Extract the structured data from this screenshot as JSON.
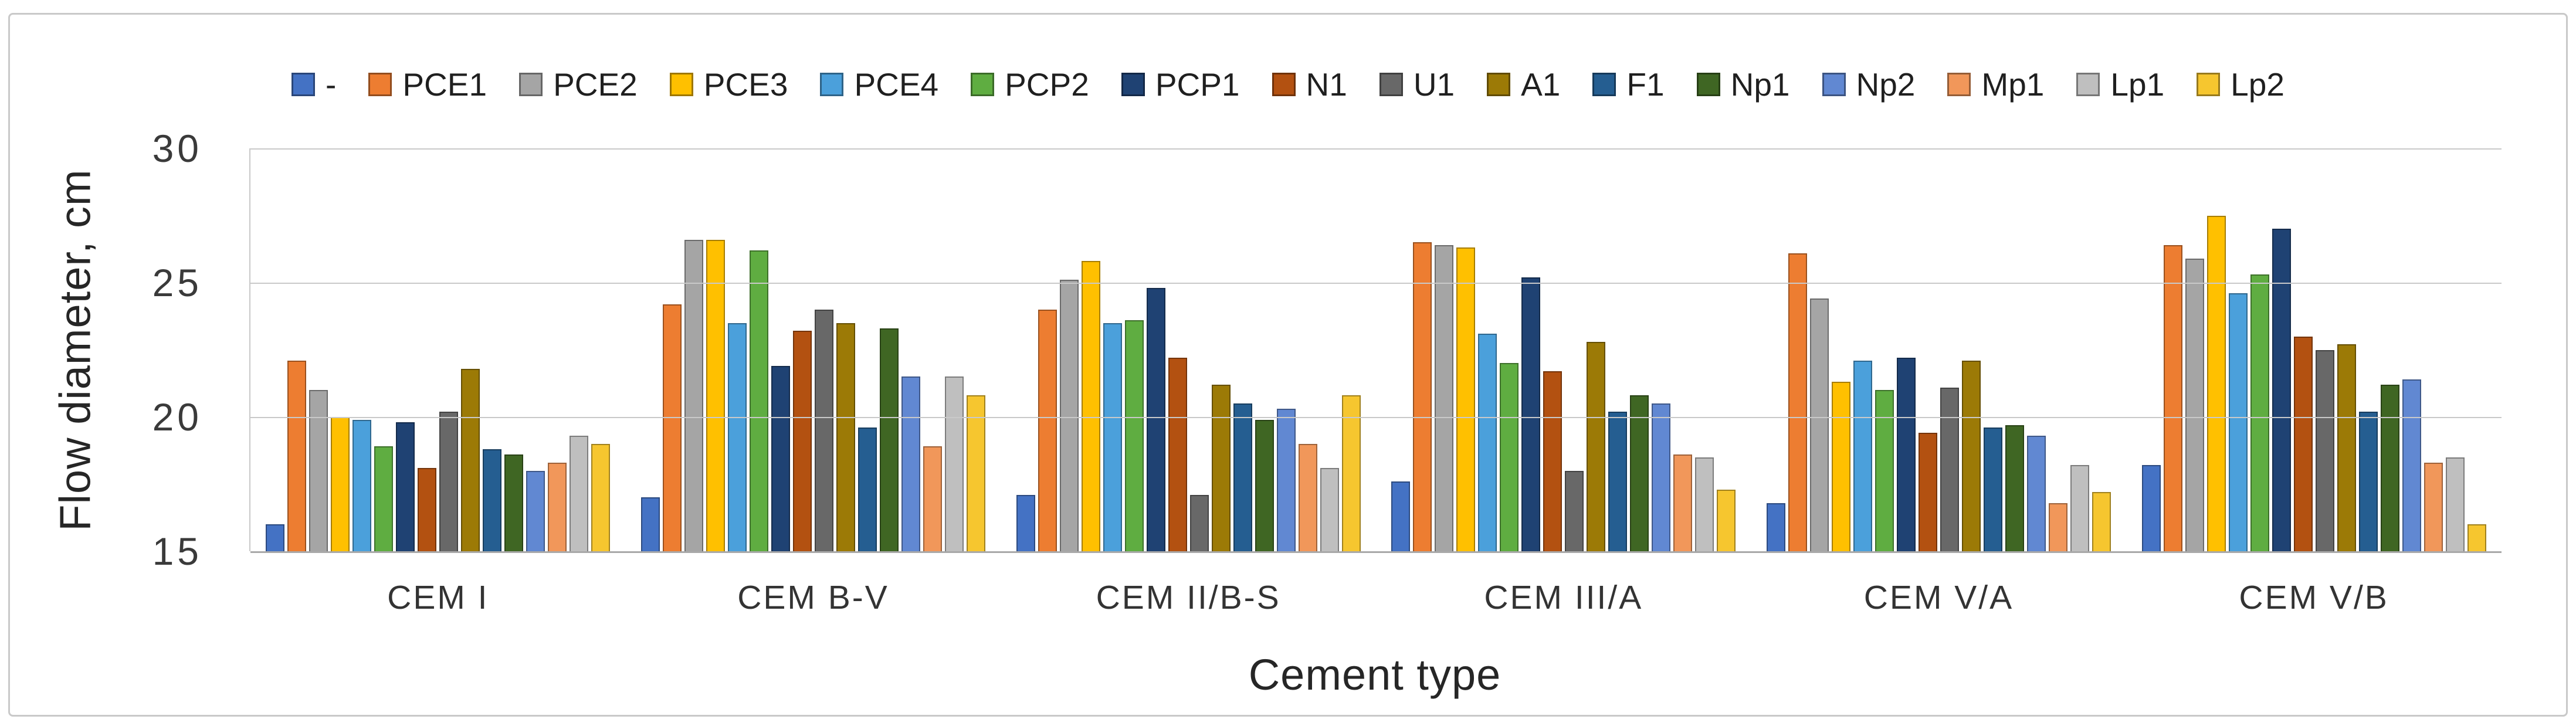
{
  "chart_data": {
    "type": "bar",
    "title": "",
    "xlabel": "Cement type",
    "ylabel": "Flow diameter, cm",
    "ylim": [
      15,
      30
    ],
    "y_ticks": [
      30,
      25,
      20,
      15
    ],
    "grid": "horizontal",
    "legend_position": "top",
    "categories": [
      "CEM I",
      "CEM B-V",
      "CEM II/B-S",
      "CEM III/A",
      "CEM V/A",
      "CEM V/B"
    ],
    "series": [
      {
        "name": "-",
        "color": "#4472C4",
        "values": [
          16.0,
          17.0,
          17.1,
          17.6,
          16.8,
          18.2
        ]
      },
      {
        "name": "PCE1",
        "color": "#ED7D31",
        "values": [
          22.1,
          24.2,
          24.0,
          26.5,
          26.1,
          26.4
        ]
      },
      {
        "name": "PCE2",
        "color": "#A5A5A5",
        "values": [
          21.0,
          26.6,
          25.1,
          26.4,
          24.4,
          25.9
        ]
      },
      {
        "name": "PCE3",
        "color": "#FFC000",
        "values": [
          20.0,
          26.6,
          25.8,
          26.3,
          21.3,
          27.5
        ]
      },
      {
        "name": "PCE4",
        "color": "#4BA0DB",
        "values": [
          19.9,
          23.5,
          23.5,
          23.1,
          22.1,
          24.6
        ]
      },
      {
        "name": "PCP2",
        "color": "#5FAD41",
        "values": [
          18.9,
          26.2,
          23.6,
          22.0,
          21.0,
          25.3
        ]
      },
      {
        "name": "PCP1",
        "color": "#1F4273",
        "values": [
          19.8,
          21.9,
          24.8,
          25.2,
          22.2,
          27.0
        ]
      },
      {
        "name": "N1",
        "color": "#B35111",
        "values": [
          18.1,
          23.2,
          22.2,
          21.7,
          19.4,
          23.0
        ]
      },
      {
        "name": "U1",
        "color": "#686868",
        "values": [
          20.2,
          24.0,
          17.1,
          18.0,
          21.1,
          22.5
        ]
      },
      {
        "name": "A1",
        "color": "#9C7A06",
        "values": [
          21.8,
          23.5,
          21.2,
          22.8,
          22.1,
          22.7
        ]
      },
      {
        "name": "F1",
        "color": "#255E91",
        "values": [
          18.8,
          19.6,
          20.5,
          20.2,
          19.6,
          20.2
        ]
      },
      {
        "name": "Np1",
        "color": "#3F6623",
        "values": [
          18.6,
          23.3,
          19.9,
          20.8,
          19.7,
          21.2
        ]
      },
      {
        "name": "Np2",
        "color": "#6188D2",
        "values": [
          18.0,
          21.5,
          20.3,
          20.5,
          19.3,
          21.4
        ]
      },
      {
        "name": "Mp1",
        "color": "#F1975A",
        "values": [
          18.3,
          18.9,
          19.0,
          18.6,
          16.8,
          18.3
        ]
      },
      {
        "name": "Lp1",
        "color": "#BFBFBF",
        "values": [
          19.3,
          21.5,
          18.1,
          18.5,
          18.2,
          18.5
        ]
      },
      {
        "name": "Lp2",
        "color": "#F6C62F",
        "values": [
          19.0,
          20.8,
          20.8,
          17.3,
          17.2,
          16.0
        ]
      }
    ]
  }
}
